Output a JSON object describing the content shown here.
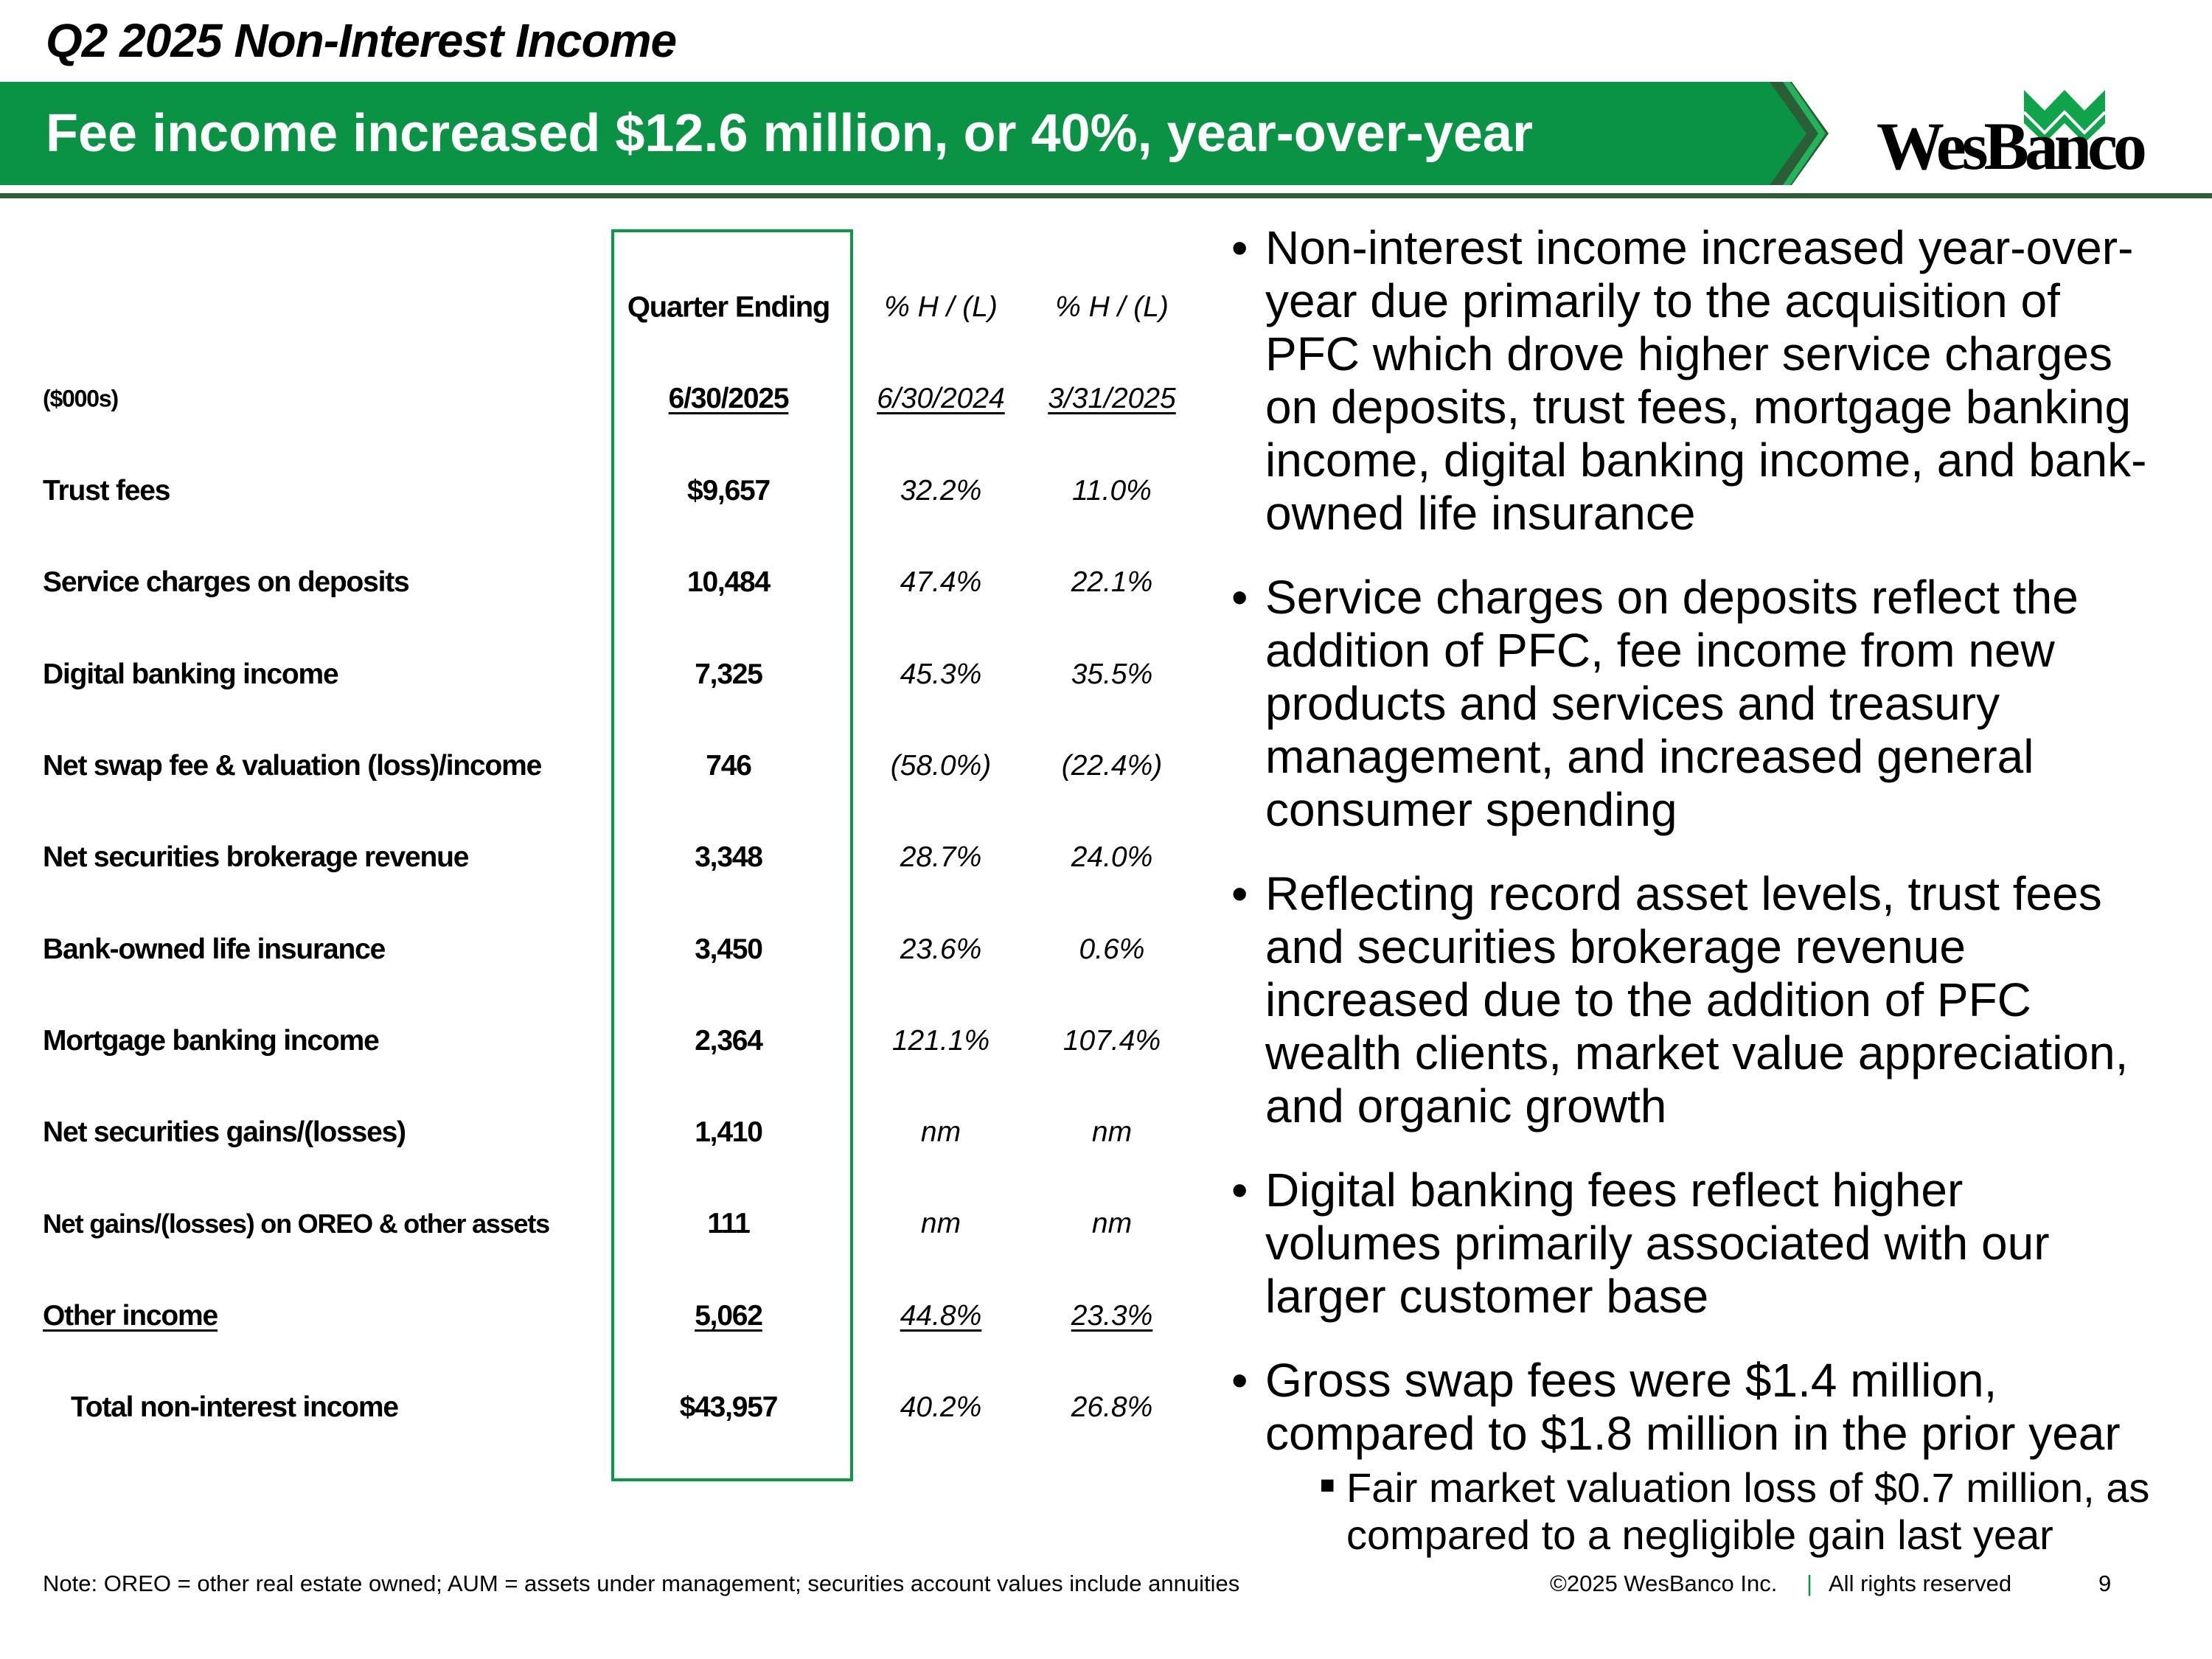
{
  "title": "Q2 2025 Non-Interest Income",
  "banner": "Fee income increased $12.6 million, or 40%, year-over-year",
  "logo": "WesBanco",
  "table": {
    "units": "($000s)",
    "col_headers": [
      "Quarter Ending",
      "% H / (L)",
      "% H / (L)"
    ],
    "col_dates": [
      "6/30/2025",
      "6/30/2024",
      "3/31/2025"
    ],
    "rows": [
      {
        "label": "Trust fees",
        "value": "$9,657",
        "yoy": "32.2%",
        "qoq": "11.0%"
      },
      {
        "label": "Service charges on deposits",
        "value": "10,484",
        "yoy": "47.4%",
        "qoq": "22.1%"
      },
      {
        "label": "Digital banking income",
        "value": "7,325",
        "yoy": "45.3%",
        "qoq": "35.5%"
      },
      {
        "label": "Net swap fee & valuation (loss)/income",
        "value": "746",
        "yoy": "(58.0%)",
        "qoq": "(22.4%)"
      },
      {
        "label": "Net securities brokerage revenue",
        "value": "3,348",
        "yoy": "28.7%",
        "qoq": "24.0%"
      },
      {
        "label": "Bank-owned life insurance",
        "value": "3,450",
        "yoy": "23.6%",
        "qoq": "0.6%"
      },
      {
        "label": "Mortgage banking income",
        "value": "2,364",
        "yoy": "121.1%",
        "qoq": "107.4%"
      },
      {
        "label": "Net securities gains/(losses)",
        "value": "1,410",
        "yoy": "nm",
        "qoq": "nm"
      },
      {
        "label": "Net gains/(losses) on OREO & other assets",
        "value": "111",
        "yoy": "nm",
        "qoq": "nm"
      },
      {
        "label": "Other income",
        "value": "5,062",
        "yoy": "44.8%",
        "qoq": "23.3%"
      },
      {
        "label": "Total non-interest income",
        "value": "$43,957",
        "yoy": "40.2%",
        "qoq": "26.8%"
      }
    ]
  },
  "bullets": [
    {
      "lines": [
        "Non-interest income increased year-over-",
        "year due primarily to the acquisition of",
        "PFC which drove higher service charges",
        "on deposits, trust fees, mortgage banking",
        "income, digital banking income, and bank-",
        "owned life insurance"
      ]
    },
    {
      "lines": [
        "Service charges on deposits reflect the",
        "addition of PFC, fee income from new",
        "products and services and treasury",
        "management, and increased general",
        "consumer spending"
      ]
    },
    {
      "lines": [
        "Reflecting record asset levels, trust fees",
        "and securities brokerage revenue",
        "increased due to the addition of PFC",
        "wealth clients, market value appreciation,",
        "and organic growth"
      ]
    },
    {
      "lines": [
        "Digital banking fees reflect higher",
        "volumes primarily associated with our",
        "larger customer base"
      ]
    },
    {
      "lines": [
        "Gross swap fees were $1.4 million,",
        "compared to $1.8 million in the prior year"
      ]
    }
  ],
  "sub_bullet": {
    "lines": [
      "Fair market valuation loss of $0.7 million, as",
      "compared to a negligible gain last year"
    ]
  },
  "footer": {
    "note": "Note: OREO = other real estate owned; AUM = assets under management; securities account values include annuities",
    "copyright": "©2025 WesBanco Inc.",
    "separator": "|",
    "rights": "All rights reserved",
    "page": "9"
  },
  "colors": {
    "brand_green": "#0a9344",
    "dark_green": "#2a5e36",
    "logo_green": "#10a44a"
  }
}
